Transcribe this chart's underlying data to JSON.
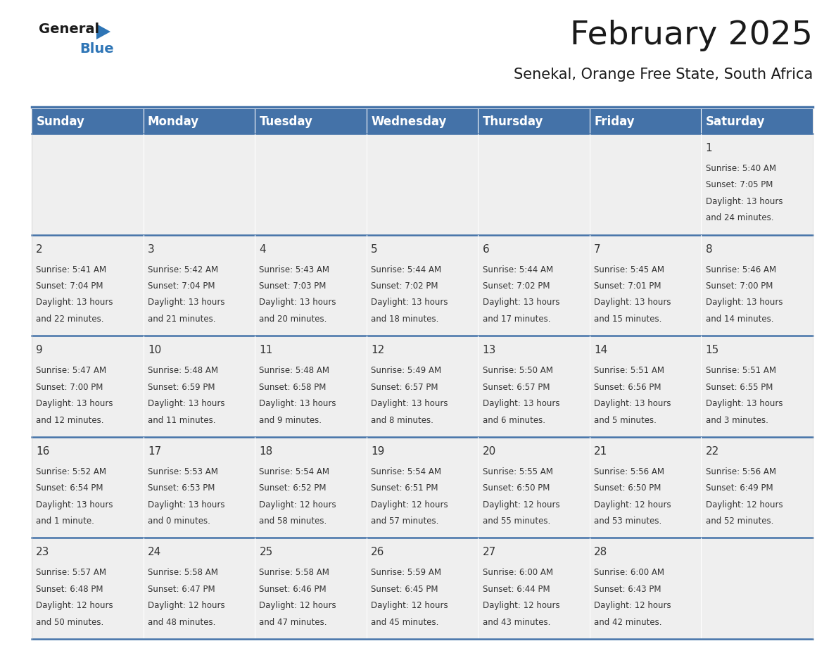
{
  "title": "February 2025",
  "subtitle": "Senekal, Orange Free State, South Africa",
  "days_of_week": [
    "Sunday",
    "Monday",
    "Tuesday",
    "Wednesday",
    "Thursday",
    "Friday",
    "Saturday"
  ],
  "header_bg": "#4472A8",
  "header_text": "#FFFFFF",
  "cell_bg": "#EFEFEF",
  "day_num_color": "#333333",
  "info_text_color": "#333333",
  "border_color": "#4472A8",
  "logo_color_dark": "#1a1a1a",
  "logo_color_blue": "#2E75B6",
  "calendar_data": [
    [
      null,
      null,
      null,
      null,
      null,
      null,
      {
        "day": 1,
        "sunrise": "5:40 AM",
        "sunset": "7:05 PM",
        "daylight": "13 hours and 24 minutes."
      }
    ],
    [
      {
        "day": 2,
        "sunrise": "5:41 AM",
        "sunset": "7:04 PM",
        "daylight": "13 hours and 22 minutes."
      },
      {
        "day": 3,
        "sunrise": "5:42 AM",
        "sunset": "7:04 PM",
        "daylight": "13 hours and 21 minutes."
      },
      {
        "day": 4,
        "sunrise": "5:43 AM",
        "sunset": "7:03 PM",
        "daylight": "13 hours and 20 minutes."
      },
      {
        "day": 5,
        "sunrise": "5:44 AM",
        "sunset": "7:02 PM",
        "daylight": "13 hours and 18 minutes."
      },
      {
        "day": 6,
        "sunrise": "5:44 AM",
        "sunset": "7:02 PM",
        "daylight": "13 hours and 17 minutes."
      },
      {
        "day": 7,
        "sunrise": "5:45 AM",
        "sunset": "7:01 PM",
        "daylight": "13 hours and 15 minutes."
      },
      {
        "day": 8,
        "sunrise": "5:46 AM",
        "sunset": "7:00 PM",
        "daylight": "13 hours and 14 minutes."
      }
    ],
    [
      {
        "day": 9,
        "sunrise": "5:47 AM",
        "sunset": "7:00 PM",
        "daylight": "13 hours and 12 minutes."
      },
      {
        "day": 10,
        "sunrise": "5:48 AM",
        "sunset": "6:59 PM",
        "daylight": "13 hours and 11 minutes."
      },
      {
        "day": 11,
        "sunrise": "5:48 AM",
        "sunset": "6:58 PM",
        "daylight": "13 hours and 9 minutes."
      },
      {
        "day": 12,
        "sunrise": "5:49 AM",
        "sunset": "6:57 PM",
        "daylight": "13 hours and 8 minutes."
      },
      {
        "day": 13,
        "sunrise": "5:50 AM",
        "sunset": "6:57 PM",
        "daylight": "13 hours and 6 minutes."
      },
      {
        "day": 14,
        "sunrise": "5:51 AM",
        "sunset": "6:56 PM",
        "daylight": "13 hours and 5 minutes."
      },
      {
        "day": 15,
        "sunrise": "5:51 AM",
        "sunset": "6:55 PM",
        "daylight": "13 hours and 3 minutes."
      }
    ],
    [
      {
        "day": 16,
        "sunrise": "5:52 AM",
        "sunset": "6:54 PM",
        "daylight": "13 hours and 1 minute."
      },
      {
        "day": 17,
        "sunrise": "5:53 AM",
        "sunset": "6:53 PM",
        "daylight": "13 hours and 0 minutes."
      },
      {
        "day": 18,
        "sunrise": "5:54 AM",
        "sunset": "6:52 PM",
        "daylight": "12 hours and 58 minutes."
      },
      {
        "day": 19,
        "sunrise": "5:54 AM",
        "sunset": "6:51 PM",
        "daylight": "12 hours and 57 minutes."
      },
      {
        "day": 20,
        "sunrise": "5:55 AM",
        "sunset": "6:50 PM",
        "daylight": "12 hours and 55 minutes."
      },
      {
        "day": 21,
        "sunrise": "5:56 AM",
        "sunset": "6:50 PM",
        "daylight": "12 hours and 53 minutes."
      },
      {
        "day": 22,
        "sunrise": "5:56 AM",
        "sunset": "6:49 PM",
        "daylight": "12 hours and 52 minutes."
      }
    ],
    [
      {
        "day": 23,
        "sunrise": "5:57 AM",
        "sunset": "6:48 PM",
        "daylight": "12 hours and 50 minutes."
      },
      {
        "day": 24,
        "sunrise": "5:58 AM",
        "sunset": "6:47 PM",
        "daylight": "12 hours and 48 minutes."
      },
      {
        "day": 25,
        "sunrise": "5:58 AM",
        "sunset": "6:46 PM",
        "daylight": "12 hours and 47 minutes."
      },
      {
        "day": 26,
        "sunrise": "5:59 AM",
        "sunset": "6:45 PM",
        "daylight": "12 hours and 45 minutes."
      },
      {
        "day": 27,
        "sunrise": "6:00 AM",
        "sunset": "6:44 PM",
        "daylight": "12 hours and 43 minutes."
      },
      {
        "day": 28,
        "sunrise": "6:00 AM",
        "sunset": "6:43 PM",
        "daylight": "12 hours and 42 minutes."
      },
      null
    ]
  ],
  "title_fontsize": 34,
  "subtitle_fontsize": 15,
  "header_fontsize": 12,
  "day_num_fontsize": 11,
  "info_fontsize": 8.5,
  "logo_fontsize_general": 14,
  "logo_fontsize_blue": 14
}
